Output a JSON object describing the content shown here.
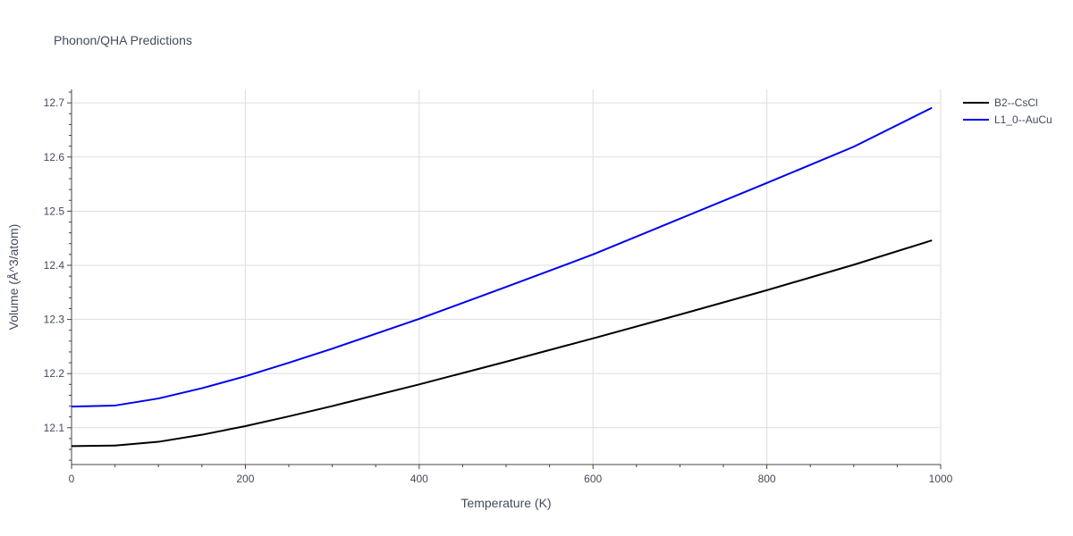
{
  "chart_data": {
    "type": "line",
    "title": "Phonon/QHA Predictions",
    "xlabel": "Temperature (K)",
    "ylabel": "Volume (Å^3/atom)",
    "xlim": [
      0,
      1000
    ],
    "ylim": [
      12.032,
      12.725
    ],
    "xticks": [
      0,
      200,
      400,
      600,
      800,
      1000
    ],
    "yticks": [
      12.1,
      12.2,
      12.3,
      12.4,
      12.5,
      12.6,
      12.7
    ],
    "xtick_labels": [
      "0",
      "200",
      "400",
      "600",
      "800",
      "1000"
    ],
    "ytick_labels": [
      "12.1",
      "12.2",
      "12.3",
      "12.4",
      "12.5",
      "12.6",
      "12.7"
    ],
    "grid": true,
    "legend_position": "top-right",
    "series": [
      {
        "name": "B2--CsCl",
        "color": "#000000",
        "x": [
          0,
          50,
          100,
          150,
          200,
          250,
          300,
          400,
          500,
          600,
          700,
          800,
          900,
          990
        ],
        "y": [
          12.066,
          12.067,
          12.074,
          12.087,
          12.103,
          12.121,
          12.14,
          12.18,
          12.222,
          12.265,
          12.309,
          12.354,
          12.401,
          12.446
        ]
      },
      {
        "name": "L1_0--AuCu",
        "color": "#0000ee",
        "x": [
          0,
          50,
          100,
          150,
          200,
          250,
          300,
          400,
          500,
          600,
          700,
          800,
          900,
          990
        ],
        "y": [
          12.139,
          12.141,
          12.154,
          12.173,
          12.195,
          12.22,
          12.246,
          12.301,
          12.36,
          12.42,
          12.486,
          12.552,
          12.619,
          12.691
        ]
      }
    ]
  }
}
